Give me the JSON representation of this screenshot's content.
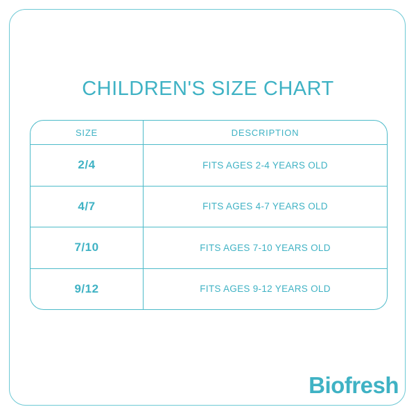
{
  "chart_data": {
    "type": "table",
    "title": "CHILDREN'S SIZE CHART",
    "columns": [
      "SIZE",
      "DESCRIPTION"
    ],
    "rows": [
      [
        "2/4",
        "FITS AGES 2-4 YEARS OLD"
      ],
      [
        "4/7",
        "FITS AGES 4-7 YEARS OLD"
      ],
      [
        "7/10",
        "FITS AGES 7-10 YEARS OLD"
      ],
      [
        "9/12",
        "FITS AGES 9-12 YEARS OLD"
      ]
    ]
  },
  "brand": {
    "logo_text": "Biofresh"
  },
  "colors": {
    "accent_text": "#3fb2c4",
    "table_border": "#4cbac9",
    "frame_border": "#6cc8d4",
    "background": "#ffffff"
  }
}
